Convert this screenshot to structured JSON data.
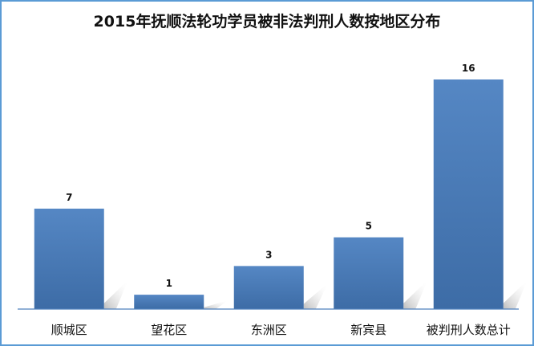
{
  "chart_data": {
    "type": "bar",
    "title": "2015年抚顺法轮功学员被非法判刑人数按地区分布",
    "categories": [
      "顺城区",
      "望花区",
      "东洲区",
      "新宾县",
      "被判刑人数总计"
    ],
    "values": [
      7,
      1,
      3,
      5,
      16
    ],
    "xlabel": "",
    "ylabel": "",
    "ylim": [
      0,
      16
    ],
    "grid": false,
    "legend": "none",
    "bar_color": "#4f81bd",
    "border_color": "#5b9bd5"
  }
}
